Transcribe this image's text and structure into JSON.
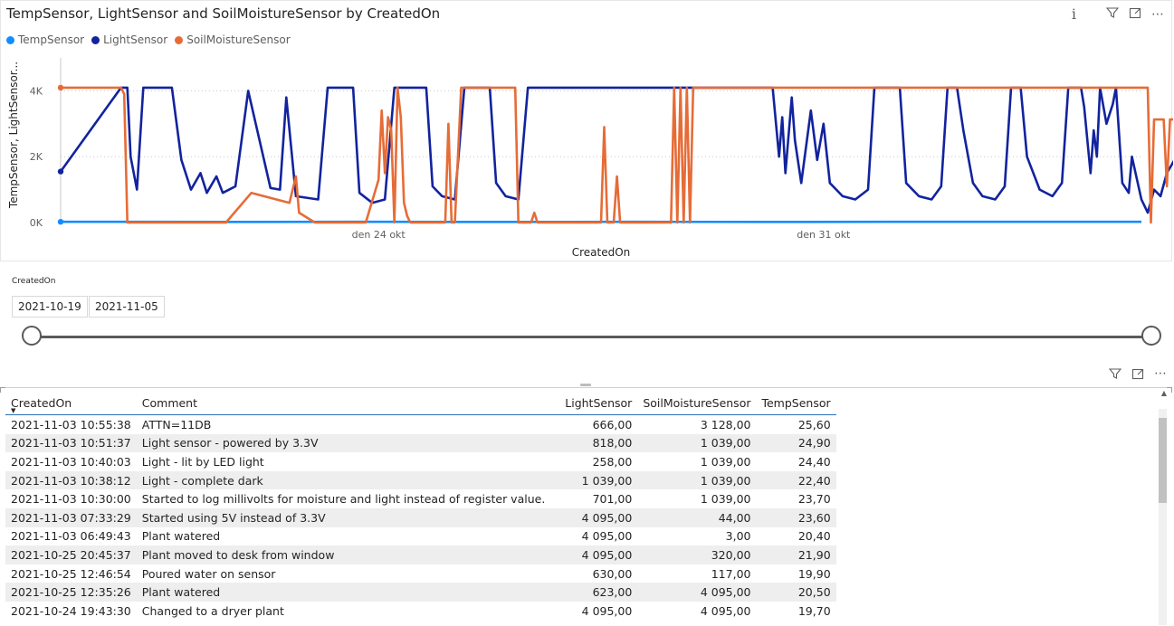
{
  "chart": {
    "title": "TempSensor, LightSensor and SoilMoistureSensor by CreatedOn",
    "legend": [
      {
        "name": "TempSensor",
        "color": "#118dff"
      },
      {
        "name": "LightSensor",
        "color": "#12239e"
      },
      {
        "name": "SoilMoistureSensor",
        "color": "#e66c37"
      }
    ],
    "header_icons": [
      "info-icon",
      "filter-icon",
      "focus-mode-icon",
      "more-options-icon"
    ]
  },
  "chart_data": {
    "type": "line",
    "title": "TempSensor, LightSensor and SoilMoistureSensor by CreatedOn",
    "xlabel": "CreatedOn",
    "ylabel": "TempSensor, LightSensor...",
    "x_range": [
      "2021-10-19",
      "2021-11-05"
    ],
    "x_ticks": [
      {
        "date": "2021-10-24",
        "label": "den 24 okt"
      },
      {
        "date": "2021-10-31",
        "label": "den 31 okt"
      }
    ],
    "ylim": [
      0,
      5000
    ],
    "y_ticks": [
      {
        "value": 0,
        "label": "0K"
      },
      {
        "value": 2000,
        "label": "2K"
      },
      {
        "value": 4000,
        "label": "4K"
      }
    ],
    "grid": "horizontal dotted",
    "legend_position": "top-left",
    "series": [
      {
        "name": "TempSensor",
        "color": "#118dff",
        "points": [
          [
            19.0,
            22
          ],
          [
            20.0,
            21
          ],
          [
            22.0,
            20
          ],
          [
            24.0,
            21
          ],
          [
            26.0,
            20
          ],
          [
            28.0,
            21
          ],
          [
            30.0,
            20
          ],
          [
            32.0,
            21
          ],
          [
            34.0,
            22
          ],
          [
            36.0,
            22
          ]
        ]
      },
      {
        "name": "LightSensor",
        "color": "#12239e",
        "points": [
          [
            19.0,
            1550
          ],
          [
            19.95,
            4095
          ],
          [
            20.05,
            4095
          ],
          [
            20.1,
            2000
          ],
          [
            20.2,
            1000
          ],
          [
            20.3,
            4095
          ],
          [
            20.6,
            4095
          ],
          [
            20.75,
            4095
          ],
          [
            20.9,
            1900
          ],
          [
            21.05,
            1000
          ],
          [
            21.2,
            1500
          ],
          [
            21.3,
            900
          ],
          [
            21.45,
            1400
          ],
          [
            21.55,
            900
          ],
          [
            21.75,
            1100
          ],
          [
            21.95,
            4000
          ],
          [
            22.3,
            1050
          ],
          [
            22.45,
            1000
          ],
          [
            22.55,
            3800
          ],
          [
            22.7,
            800
          ],
          [
            23.05,
            700
          ],
          [
            23.2,
            4095
          ],
          [
            23.6,
            4095
          ],
          [
            23.7,
            900
          ],
          [
            23.9,
            600
          ],
          [
            24.1,
            700
          ],
          [
            24.25,
            4095
          ],
          [
            24.75,
            4095
          ],
          [
            24.85,
            1100
          ],
          [
            25.0,
            800
          ],
          [
            25.2,
            700
          ],
          [
            25.35,
            4095
          ],
          [
            25.75,
            4095
          ],
          [
            25.85,
            1200
          ],
          [
            26.0,
            800
          ],
          [
            26.2,
            700
          ],
          [
            26.35,
            4095
          ],
          [
            30.2,
            4095
          ],
          [
            30.3,
            2000
          ],
          [
            30.35,
            3200
          ],
          [
            30.4,
            1500
          ],
          [
            30.5,
            3800
          ],
          [
            30.55,
            2500
          ],
          [
            30.65,
            1200
          ],
          [
            30.8,
            3400
          ],
          [
            30.9,
            1900
          ],
          [
            31.0,
            3000
          ],
          [
            31.1,
            1200
          ],
          [
            31.3,
            800
          ],
          [
            31.5,
            700
          ],
          [
            31.7,
            1000
          ],
          [
            31.8,
            4095
          ],
          [
            32.2,
            4095
          ],
          [
            32.3,
            1200
          ],
          [
            32.5,
            800
          ],
          [
            32.7,
            700
          ],
          [
            32.85,
            1100
          ],
          [
            32.95,
            4095
          ],
          [
            33.1,
            4095
          ],
          [
            33.2,
            2800
          ],
          [
            33.35,
            1200
          ],
          [
            33.5,
            800
          ],
          [
            33.7,
            700
          ],
          [
            33.85,
            1100
          ],
          [
            33.95,
            4095
          ],
          [
            34.1,
            4095
          ],
          [
            34.2,
            2000
          ],
          [
            34.4,
            1000
          ],
          [
            34.6,
            800
          ],
          [
            34.75,
            1200
          ],
          [
            34.85,
            4095
          ],
          [
            35.05,
            4095
          ],
          [
            35.1,
            3500
          ],
          [
            35.2,
            1500
          ],
          [
            35.25,
            2800
          ],
          [
            35.3,
            2000
          ],
          [
            35.35,
            4095
          ],
          [
            35.45,
            3000
          ],
          [
            35.55,
            3600
          ],
          [
            35.6,
            4095
          ],
          [
            35.7,
            1200
          ],
          [
            35.8,
            900
          ],
          [
            35.85,
            2000
          ],
          [
            36.0,
            700
          ],
          [
            36.1,
            300
          ],
          [
            36.2,
            1000
          ],
          [
            36.3,
            800
          ],
          [
            36.4,
            1500
          ],
          [
            36.55,
            2000
          ],
          [
            36.7,
            3000
          ],
          [
            36.8,
            1200
          ],
          [
            36.9,
            3100
          ],
          [
            37.0,
            1200
          ],
          [
            37.1,
            2000
          ],
          [
            37.2,
            3100
          ],
          [
            37.35,
            1500
          ],
          [
            37.45,
            3000
          ],
          [
            37.55,
            2500
          ],
          [
            37.65,
            1000
          ],
          [
            37.75,
            3100
          ],
          [
            37.8,
            2000
          ],
          [
            37.9,
            3000
          ],
          [
            38.0,
            3100
          ],
          [
            38.05,
            1200
          ],
          [
            38.1,
            300
          ]
        ]
      },
      {
        "name": "SoilMoistureSensor",
        "color": "#e66c37",
        "points": [
          [
            19.0,
            4095
          ],
          [
            19.95,
            4095
          ],
          [
            20.0,
            3900
          ],
          [
            20.05,
            0
          ],
          [
            21.0,
            0
          ],
          [
            21.6,
            0
          ],
          [
            22.0,
            900
          ],
          [
            22.6,
            600
          ],
          [
            22.7,
            1400
          ],
          [
            22.75,
            300
          ],
          [
            23.0,
            0
          ],
          [
            23.7,
            0
          ],
          [
            23.8,
            0
          ],
          [
            24.0,
            1300
          ],
          [
            24.05,
            3400
          ],
          [
            24.1,
            1500
          ],
          [
            24.15,
            3200
          ],
          [
            24.2,
            2800
          ],
          [
            24.25,
            0
          ],
          [
            24.3,
            4095
          ],
          [
            24.35,
            3200
          ],
          [
            24.4,
            600
          ],
          [
            24.45,
            200
          ],
          [
            24.5,
            0
          ],
          [
            25.0,
            0
          ],
          [
            25.05,
            0
          ],
          [
            25.1,
            3000
          ],
          [
            25.15,
            0
          ],
          [
            25.2,
            0
          ],
          [
            25.3,
            4095
          ],
          [
            25.4,
            4095
          ],
          [
            26.15,
            4095
          ],
          [
            26.2,
            0
          ],
          [
            26.4,
            0
          ],
          [
            26.45,
            300
          ],
          [
            26.5,
            0
          ],
          [
            27.5,
            0
          ],
          [
            27.55,
            2900
          ],
          [
            27.6,
            0
          ],
          [
            27.7,
            0
          ],
          [
            27.75,
            1400
          ],
          [
            27.8,
            0
          ],
          [
            28.6,
            0
          ],
          [
            28.65,
            4095
          ],
          [
            28.7,
            0
          ],
          [
            28.75,
            4095
          ],
          [
            28.8,
            0
          ],
          [
            28.85,
            4095
          ],
          [
            28.9,
            0
          ],
          [
            28.95,
            4095
          ],
          [
            29.0,
            4095
          ],
          [
            33.0,
            4095
          ],
          [
            36.0,
            4095
          ],
          [
            36.1,
            4095
          ],
          [
            36.15,
            0
          ],
          [
            36.2,
            3128
          ],
          [
            36.35,
            3128
          ],
          [
            36.4,
            1100
          ],
          [
            36.45,
            3128
          ],
          [
            36.6,
            3128
          ],
          [
            36.65,
            1100
          ],
          [
            36.7,
            3128
          ],
          [
            37.1,
            3128
          ],
          [
            37.2,
            3128
          ],
          [
            37.25,
            1039
          ],
          [
            37.3,
            3128
          ],
          [
            38.0,
            3128
          ],
          [
            38.1,
            3128
          ]
        ]
      }
    ]
  },
  "slicer": {
    "label": "CreatedOn",
    "start_date": "2021-10-19",
    "end_date": "2021-11-05",
    "range_fraction": [
      0,
      1
    ]
  },
  "table": {
    "header_icons": [
      "filter-icon",
      "focus-mode-icon",
      "more-options-icon"
    ],
    "columns": [
      "CreatedOn",
      "Comment",
      "LightSensor",
      "SoilMoistureSensor",
      "TempSensor"
    ],
    "sort_column": "CreatedOn",
    "sort_direction": "descending",
    "rows": [
      [
        "2021-11-03 10:55:38",
        "ATTN=11DB",
        "666,00",
        "3 128,00",
        "25,60"
      ],
      [
        "2021-11-03 10:51:37",
        "Light sensor - powered by 3.3V",
        "818,00",
        "1 039,00",
        "24,90"
      ],
      [
        "2021-11-03 10:40:03",
        "Light - lit by LED light",
        "258,00",
        "1 039,00",
        "24,40"
      ],
      [
        "2021-11-03 10:38:12",
        "Light - complete dark",
        "1 039,00",
        "1 039,00",
        "22,40"
      ],
      [
        "2021-11-03 10:30:00",
        "Started to log millivolts for moisture and light instead of register value.",
        "701,00",
        "1 039,00",
        "23,70"
      ],
      [
        "2021-11-03 07:33:29",
        "Started using 5V instead of 3.3V",
        "4 095,00",
        "44,00",
        "23,60"
      ],
      [
        "2021-11-03 06:49:43",
        "Plant watered",
        "4 095,00",
        "3,00",
        "20,40"
      ],
      [
        "2021-10-25 20:45:37",
        "Plant moved to desk from window",
        "4 095,00",
        "320,00",
        "21,90"
      ],
      [
        "2021-10-25 12:46:54",
        "Poured water on sensor",
        "630,00",
        "117,00",
        "19,90"
      ],
      [
        "2021-10-25 12:35:26",
        "Plant watered",
        "623,00",
        "4 095,00",
        "20,50"
      ],
      [
        "2021-10-24 19:43:30",
        "Changed to a dryer plant",
        "4 095,00",
        "4 095,00",
        "19,70"
      ]
    ]
  }
}
